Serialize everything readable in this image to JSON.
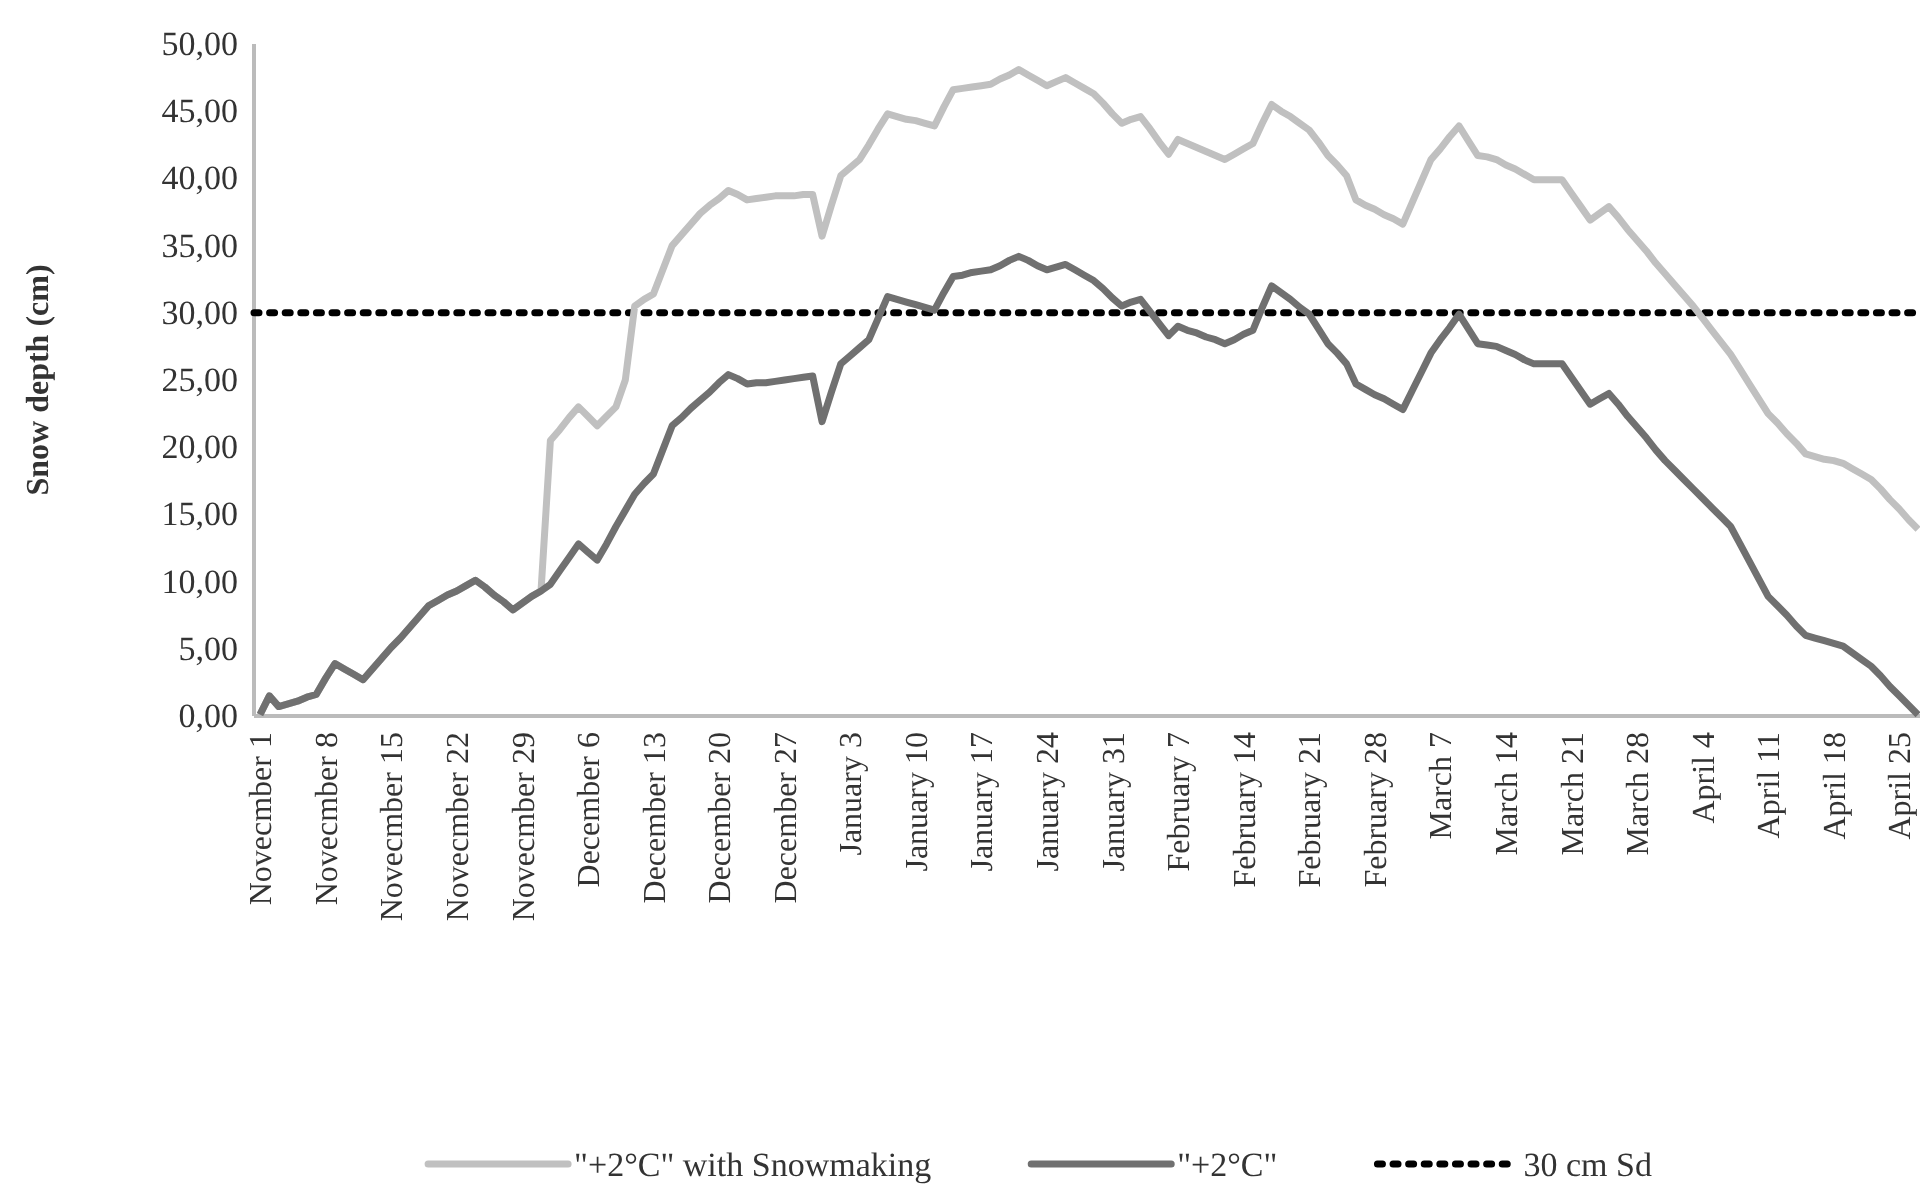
{
  "chart_data": {
    "type": "line",
    "ylabel": "Snow depth (cm)",
    "categories": [
      "Novecmber 1",
      null,
      null,
      null,
      null,
      null,
      null,
      "Novecmber 8",
      null,
      null,
      null,
      null,
      null,
      null,
      "Novecmber 15",
      null,
      null,
      null,
      null,
      null,
      null,
      "Novecmber 22",
      null,
      null,
      null,
      null,
      null,
      null,
      "Novecmber 29",
      null,
      null,
      null,
      null,
      null,
      null,
      "December 6",
      null,
      null,
      null,
      null,
      null,
      null,
      "December 13",
      null,
      null,
      null,
      null,
      null,
      null,
      "December 20",
      null,
      null,
      null,
      null,
      null,
      null,
      "December 27",
      null,
      null,
      null,
      null,
      null,
      null,
      "January 3",
      null,
      null,
      null,
      null,
      null,
      null,
      "January 10",
      null,
      null,
      null,
      null,
      null,
      null,
      "January 17",
      null,
      null,
      null,
      null,
      null,
      null,
      "January 24",
      null,
      null,
      null,
      null,
      null,
      null,
      "January 31",
      null,
      null,
      null,
      null,
      null,
      null,
      "February 7",
      null,
      null,
      null,
      null,
      null,
      null,
      "February 14",
      null,
      null,
      null,
      null,
      null,
      null,
      "February 21",
      null,
      null,
      null,
      null,
      null,
      null,
      "February 28",
      null,
      null,
      null,
      null,
      null,
      null,
      "March 7",
      null,
      null,
      null,
      null,
      null,
      null,
      "March 14",
      null,
      null,
      null,
      null,
      null,
      null,
      "March 21",
      null,
      null,
      null,
      null,
      null,
      null,
      "March 28",
      null,
      null,
      null,
      null,
      null,
      null,
      "April 4",
      null,
      null,
      null,
      null,
      null,
      null,
      "April 11",
      null,
      null,
      null,
      null,
      null,
      null,
      "April 18",
      null,
      null,
      null,
      null,
      null,
      null,
      "April 25",
      null,
      null
    ],
    "ylim": [
      0,
      50
    ],
    "yticks": [
      {
        "value": 0,
        "label": "0,00"
      },
      {
        "value": 5,
        "label": "5,00"
      },
      {
        "value": 10,
        "label": "10,00"
      },
      {
        "value": 15,
        "label": "15,00"
      },
      {
        "value": 20,
        "label": "20,00"
      },
      {
        "value": 25,
        "label": "25,00"
      },
      {
        "value": 30,
        "label": "30,00"
      },
      {
        "value": 35,
        "label": "35,00"
      },
      {
        "value": 40,
        "label": "40,00"
      },
      {
        "value": 45,
        "label": "45,00"
      },
      {
        "value": 50,
        "label": "50,00"
      }
    ],
    "grid": false,
    "legend": "bottom",
    "line_style": "solid",
    "marker": "none",
    "series": [
      {
        "name": "\"+2°C\" with Snowmaking",
        "color": "#c0c0c0",
        "values": [
          0.1,
          1.5,
          0.7,
          0.9,
          1.1,
          1.4,
          1.6,
          2.8,
          3.9,
          3.5,
          3.1,
          2.7,
          3.5,
          4.3,
          5.1,
          5.8,
          6.6,
          7.4,
          8.2,
          8.6,
          9.0,
          9.3,
          9.7,
          10.1,
          9.6,
          9.0,
          8.5,
          7.9,
          8.4,
          8.9,
          9.3,
          20.5,
          21.3,
          22.2,
          23.0,
          22.3,
          21.6,
          22.3,
          23.0,
          25.0,
          30.5,
          31.0,
          31.4,
          33.2,
          35.0,
          35.8,
          36.6,
          37.4,
          38.0,
          38.5,
          39.1,
          38.8,
          38.4,
          38.5,
          38.6,
          38.7,
          38.7,
          38.7,
          38.8,
          38.8,
          35.7,
          38.0,
          40.2,
          40.8,
          41.4,
          42.5,
          43.7,
          44.8,
          44.6,
          44.4,
          44.3,
          44.1,
          43.9,
          45.3,
          46.6,
          46.7,
          46.8,
          46.9,
          47.0,
          47.4,
          47.7,
          48.1,
          47.7,
          47.3,
          46.9,
          47.2,
          47.5,
          47.1,
          46.7,
          46.3,
          45.6,
          44.8,
          44.1,
          44.4,
          44.6,
          43.7,
          42.7,
          41.8,
          42.9,
          42.6,
          42.3,
          42.0,
          41.7,
          41.4,
          41.8,
          42.2,
          42.6,
          44.1,
          45.5,
          45.0,
          44.6,
          44.1,
          43.6,
          42.7,
          41.7,
          41.0,
          40.2,
          38.4,
          38.0,
          37.7,
          37.3,
          37.0,
          36.6,
          38.2,
          39.8,
          41.4,
          42.2,
          43.1,
          43.9,
          42.8,
          41.7,
          41.6,
          41.4,
          41.0,
          40.7,
          40.3,
          39.9,
          39.9,
          39.9,
          39.9,
          38.9,
          37.9,
          36.9,
          37.4,
          37.9,
          37.1,
          36.2,
          35.4,
          34.6,
          33.7,
          32.9,
          32.1,
          31.3,
          30.5,
          29.6,
          28.7,
          27.8,
          26.9,
          25.8,
          24.7,
          23.6,
          22.5,
          21.8,
          21.0,
          20.3,
          19.5,
          19.3,
          19.1,
          19.0,
          18.8,
          18.4,
          18.0,
          17.6,
          16.9,
          16.1,
          15.4,
          14.6,
          13.9
        ]
      },
      {
        "name": "\"+2°C\"",
        "color": "#707070",
        "values": [
          0.1,
          1.5,
          0.7,
          0.9,
          1.1,
          1.4,
          1.6,
          2.8,
          3.9,
          3.5,
          3.1,
          2.7,
          3.5,
          4.3,
          5.1,
          5.8,
          6.6,
          7.4,
          8.2,
          8.6,
          9.0,
          9.3,
          9.7,
          10.1,
          9.6,
          9.0,
          8.5,
          7.9,
          8.4,
          8.9,
          9.3,
          9.8,
          10.8,
          11.8,
          12.8,
          12.2,
          11.6,
          12.8,
          14.1,
          15.3,
          16.5,
          17.3,
          18.0,
          19.8,
          21.6,
          22.2,
          22.9,
          23.5,
          24.1,
          24.8,
          25.4,
          25.1,
          24.7,
          24.8,
          24.8,
          24.9,
          25.0,
          25.1,
          25.2,
          25.3,
          21.9,
          24.1,
          26.2,
          26.8,
          27.4,
          28.0,
          29.6,
          31.2,
          31.0,
          30.8,
          30.6,
          30.4,
          30.2,
          31.5,
          32.7,
          32.8,
          33.0,
          33.1,
          33.2,
          33.5,
          33.9,
          34.2,
          33.9,
          33.5,
          33.2,
          33.4,
          33.6,
          33.2,
          32.8,
          32.4,
          31.8,
          31.1,
          30.5,
          30.8,
          31.0,
          30.1,
          29.2,
          28.3,
          29.0,
          28.7,
          28.5,
          28.2,
          28.0,
          27.7,
          28.0,
          28.4,
          28.7,
          30.4,
          32.0,
          31.5,
          31.0,
          30.4,
          29.9,
          28.8,
          27.7,
          27.0,
          26.2,
          24.7,
          24.3,
          23.9,
          23.6,
          23.2,
          22.8,
          24.2,
          25.6,
          27.0,
          28.0,
          28.9,
          29.9,
          28.8,
          27.7,
          27.6,
          27.5,
          27.2,
          26.9,
          26.5,
          26.2,
          26.2,
          26.2,
          26.2,
          25.2,
          24.2,
          23.2,
          23.6,
          24.0,
          23.2,
          22.3,
          21.5,
          20.7,
          19.8,
          19.0,
          18.3,
          17.6,
          16.9,
          16.2,
          15.5,
          14.8,
          14.1,
          12.8,
          11.5,
          10.2,
          8.9,
          8.2,
          7.5,
          6.7,
          6.0,
          5.8,
          5.6,
          5.4,
          5.2,
          4.7,
          4.2,
          3.7,
          3.0,
          2.2,
          1.5,
          0.8,
          0.1
        ]
      }
    ],
    "ref_lines": [
      {
        "axis": "y",
        "value": 30,
        "label": "30 cm Sd",
        "color": "#000000",
        "line_style": "dotted"
      }
    ]
  }
}
